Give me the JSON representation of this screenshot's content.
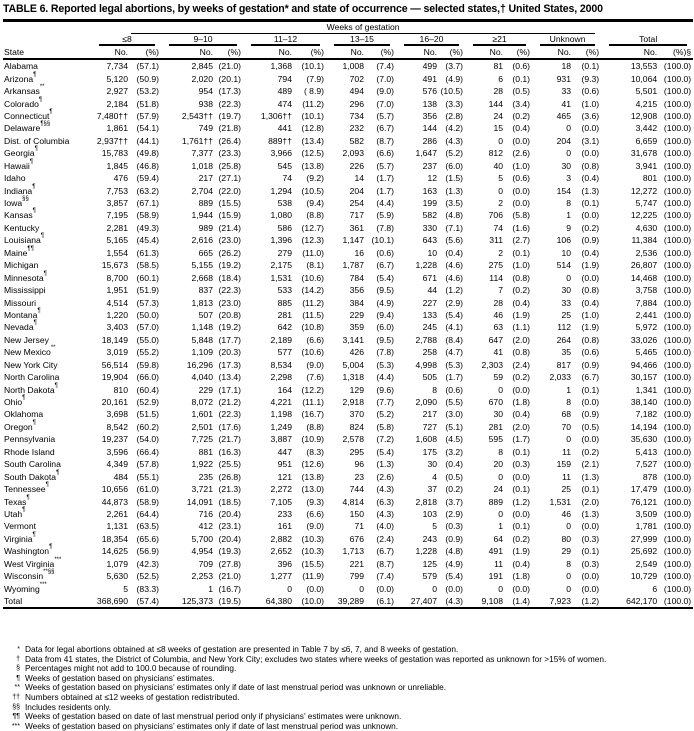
{
  "title": "TABLE 6. Reported legal abortions, by weeks of gestation* and state of occurrence — selected states,† United States, 2000",
  "header": {
    "weeks_of_gestation": "Weeks of gestation",
    "state": "State",
    "groups": [
      "≤8",
      "9–10",
      "11–12",
      "13–15",
      "16–20",
      "≥21",
      "Unknown",
      "Total"
    ],
    "no": "No.",
    "pct": "(%)",
    "pct_total": "(%)§"
  },
  "rows": [
    {
      "state": "Alabama",
      "mark": "",
      "cells": [
        "7,734",
        "(57.1)",
        "2,845",
        "(21.0)",
        "1,368",
        "(10.1)",
        "1,008",
        "(7.4)",
        "499",
        "(3.7)",
        "81",
        "(0.6)",
        "18",
        "(0.1)",
        "13,553",
        "(100.0)"
      ]
    },
    {
      "state": "Arizona",
      "mark": "¶",
      "cells": [
        "5,120",
        "(50.9)",
        "2,020",
        "(20.1)",
        "794",
        "(7.9)",
        "702",
        "(7.0)",
        "491",
        "(4.9)",
        "6",
        "(0.1)",
        "931",
        "(9.3)",
        "10,064",
        "(100.0)"
      ]
    },
    {
      "state": "Arkansas",
      "mark": "**",
      "cells": [
        "2,927",
        "(53.2)",
        "954",
        "(17.3)",
        "489",
        "( 8.9)",
        "494",
        "(9.0)",
        "576",
        "(10.5)",
        "28",
        "(0.5)",
        "33",
        "(0.6)",
        "5,501",
        "(100.0)"
      ]
    },
    {
      "state": "Colorado",
      "mark": "¶",
      "cells": [
        "2,184",
        "(51.8)",
        "938",
        "(22.3)",
        "474",
        "(11.2)",
        "296",
        "(7.0)",
        "138",
        "(3.3)",
        "144",
        "(3.4)",
        "41",
        "(1.0)",
        "4,215",
        "(100.0)"
      ]
    },
    {
      "state": "Connecticut",
      "mark": "¶",
      "cells": [
        "7,480††",
        "(57.9)",
        "2,543††",
        "(19.7)",
        "1,306††",
        "(10.1)",
        "734",
        "(5.7)",
        "356",
        "(2.8)",
        "24",
        "(0.2)",
        "465",
        "(3.6)",
        "12,908",
        "(100.0)"
      ]
    },
    {
      "state": "Delaware",
      "mark": "¶§§",
      "cells": [
        "1,861",
        "(54.1)",
        "749",
        "(21.8)",
        "441",
        "(12.8)",
        "232",
        "(6.7)",
        "144",
        "(4.2)",
        "15",
        "(0.4)",
        "0",
        "(0.0)",
        "3,442",
        "(100.0)"
      ]
    },
    {
      "state": "Dist. of Columbia",
      "mark": "",
      "cells": [
        "2,937††",
        "(44.1)",
        "1,761††",
        "(26.4)",
        "889††",
        "(13.4)",
        "582",
        "(8.7)",
        "286",
        "(4.3)",
        "0",
        "(0.0)",
        "204",
        "(3.1)",
        "6,659",
        "(100.0)"
      ]
    },
    {
      "state": "Georgia",
      "mark": "¶",
      "cells": [
        "15,783",
        "(49.8)",
        "7,377",
        "(23.3)",
        "3,966",
        "(12.5)",
        "2,093",
        "(6.6)",
        "1,647",
        "(5.2)",
        "812",
        "(2.6)",
        "0",
        "(0.0)",
        "31,678",
        "(100.0)"
      ]
    },
    {
      "state": "Hawaii",
      "mark": "¶",
      "cells": [
        "1,845",
        "(46.8)",
        "1,018",
        "(25.8)",
        "545",
        "(13.8)",
        "226",
        "(5.7)",
        "237",
        "(6.0)",
        "40",
        "(1.0)",
        "30",
        "(0.8)",
        "3,941",
        "(100.0)"
      ]
    },
    {
      "state": "Idaho",
      "mark": "",
      "cells": [
        "476",
        "(59.4)",
        "217",
        "(27.1)",
        "74",
        "(9.2)",
        "14",
        "(1.7)",
        "12",
        "(1.5)",
        "5",
        "(0.6)",
        "3",
        "(0.4)",
        "801",
        "(100.0)"
      ]
    },
    {
      "state": "Indiana",
      "mark": "¶",
      "cells": [
        "7,753",
        "(63.2)",
        "2,704",
        "(22.0)",
        "1,294",
        "(10.5)",
        "204",
        "(1.7)",
        "163",
        "(1.3)",
        "0",
        "(0.0)",
        "154",
        "(1.3)",
        "12,272",
        "(100.0)"
      ]
    },
    {
      "state": "Iowa",
      "mark": "§§",
      "cells": [
        "3,857",
        "(67.1)",
        "889",
        "(15.5)",
        "538",
        "(9.4)",
        "254",
        "(4.4)",
        "199",
        "(3.5)",
        "2",
        "(0.0)",
        "8",
        "(0.1)",
        "5,747",
        "(100.0)"
      ]
    },
    {
      "state": "Kansas",
      "mark": "¶",
      "cells": [
        "7,195",
        "(58.9)",
        "1,944",
        "(15.9)",
        "1,080",
        "(8.8)",
        "717",
        "(5.9)",
        "582",
        "(4.8)",
        "706",
        "(5.8)",
        "1",
        "(0.0)",
        "12,225",
        "(100.0)"
      ]
    },
    {
      "state": "Kentucky",
      "mark": "",
      "cells": [
        "2,281",
        "(49.3)",
        "989",
        "(21.4)",
        "586",
        "(12.7)",
        "361",
        "(7.8)",
        "330",
        "(7.1)",
        "74",
        "(1.6)",
        "9",
        "(0.2)",
        "4,630",
        "(100.0)"
      ]
    },
    {
      "state": "Louisiana",
      "mark": "¶",
      "cells": [
        "5,165",
        "(45.4)",
        "2,616",
        "(23.0)",
        "1,396",
        "(12.3)",
        "1,147",
        "(10.1)",
        "643",
        "(5.6)",
        "311",
        "(2.7)",
        "106",
        "(0.9)",
        "11,384",
        "(100.0)"
      ]
    },
    {
      "state": "Maine",
      "mark": "¶¶",
      "cells": [
        "1,554",
        "(61.3)",
        "665",
        "(26.2)",
        "279",
        "(11.0)",
        "16",
        "(0.6)",
        "10",
        "(0.4)",
        "2",
        "(0.1)",
        "10",
        "(0.4)",
        "2,536",
        "(100.0)"
      ]
    },
    {
      "state": "Michigan",
      "mark": "",
      "cells": [
        "15,673",
        "(58.5)",
        "5,155",
        "(19.2)",
        "2,175",
        "(8.1)",
        "1,787",
        "(6.7)",
        "1,228",
        "(4.6)",
        "275",
        "(1.0)",
        "514",
        "(1.9)",
        "26,807",
        "(100.0)"
      ]
    },
    {
      "state": "Minnesota",
      "mark": "¶",
      "cells": [
        "8,700",
        "(60.1)",
        "2,668",
        "(18.4)",
        "1,531",
        "(10.6)",
        "784",
        "(5.4)",
        "671",
        "(4.6)",
        "114",
        "(0.8)",
        "0",
        "(0.0)",
        "14,468",
        "(100.0)"
      ]
    },
    {
      "state": "Mississippi",
      "mark": "",
      "cells": [
        "1,951",
        "(51.9)",
        "837",
        "(22.3)",
        "533",
        "(14.2)",
        "356",
        "(9.5)",
        "44",
        "(1.2)",
        "7",
        "(0.2)",
        "30",
        "(0.8)",
        "3,758",
        "(100.0)"
      ]
    },
    {
      "state": "Missouri",
      "mark": "",
      "cells": [
        "4,514",
        "(57.3)",
        "1,813",
        "(23.0)",
        "885",
        "(11.2)",
        "384",
        "(4.9)",
        "227",
        "(2.9)",
        "28",
        "(0.4)",
        "33",
        "(0.4)",
        "7,884",
        "(100.0)"
      ]
    },
    {
      "state": "Montana",
      "mark": "¶",
      "cells": [
        "1,220",
        "(50.0)",
        "507",
        "(20.8)",
        "281",
        "(11.5)",
        "229",
        "(9.4)",
        "133",
        "(5.4)",
        "46",
        "(1.9)",
        "25",
        "(1.0)",
        "2,441",
        "(100.0)"
      ]
    },
    {
      "state": "Nevada",
      "mark": "¶",
      "cells": [
        "3,403",
        "(57.0)",
        "1,148",
        "(19.2)",
        "642",
        "(10.8)",
        "359",
        "(6.0)",
        "245",
        "(4.1)",
        "63",
        "(1.1)",
        "112",
        "(1.9)",
        "5,972",
        "(100.0)"
      ]
    },
    {
      "state": "New Jersey",
      "mark": "",
      "cells": [
        "18,149",
        "(55.0)",
        "5,848",
        "(17.7)",
        "2,189",
        "(6.6)",
        "3,141",
        "(9.5)",
        "2,788",
        "(8.4)",
        "647",
        "(2.0)",
        "264",
        "(0.8)",
        "33,026",
        "(100.0)"
      ]
    },
    {
      "state": "New Mexico",
      "mark": "**",
      "cells": [
        "3,019",
        "(55.2)",
        "1,109",
        "(20.3)",
        "577",
        "(10.6)",
        "426",
        "(7.8)",
        "258",
        "(4.7)",
        "41",
        "(0.8)",
        "35",
        "(0.6)",
        "5,465",
        "(100.0)"
      ]
    },
    {
      "state": "New York City",
      "mark": "",
      "cells": [
        "56,514",
        "(59.8)",
        "16,296",
        "(17.3)",
        "8,534",
        "(9.0)",
        "5,004",
        "(5.3)",
        "4,998",
        "(5.3)",
        "2,303",
        "(2.4)",
        "817",
        "(0.9)",
        "94,466",
        "(100.0)"
      ]
    },
    {
      "state": "North Carolina",
      "mark": "",
      "cells": [
        "19,904",
        "(66.0)",
        "4,040",
        "(13.4)",
        "2,298",
        "(7.6)",
        "1,318",
        "(4.4)",
        "505",
        "(1.7)",
        "59",
        "(0.2)",
        "2,033",
        "(6.7)",
        "30,157",
        "(100.0)"
      ]
    },
    {
      "state": "North Dakota",
      "mark": "¶",
      "cells": [
        "810",
        "(60.4)",
        "229",
        "(17.1)",
        "164",
        "(12.2)",
        "129",
        "(9.6)",
        "8",
        "(0.6)",
        "0",
        "(0.0)",
        "1",
        "(0.1)",
        "1,341",
        "(100.0)"
      ]
    },
    {
      "state": "Ohio",
      "mark": "¶",
      "cells": [
        "20,161",
        "(52.9)",
        "8,072",
        "(21.2)",
        "4,221",
        "(11.1)",
        "2,918",
        "(7.7)",
        "2,090",
        "(5.5)",
        "670",
        "(1.8)",
        "8",
        "(0.0)",
        "38,140",
        "(100.0)"
      ]
    },
    {
      "state": "Oklahoma",
      "mark": "",
      "cells": [
        "3,698",
        "(51.5)",
        "1,601",
        "(22.3)",
        "1,198",
        "(16.7)",
        "370",
        "(5.2)",
        "217",
        "(3.0)",
        "30",
        "(0.4)",
        "68",
        "(0.9)",
        "7,182",
        "(100.0)"
      ]
    },
    {
      "state": "Oregon",
      "mark": "¶",
      "cells": [
        "8,542",
        "(60.2)",
        "2,501",
        "(17.6)",
        "1,249",
        "(8.8)",
        "824",
        "(5.8)",
        "727",
        "(5.1)",
        "281",
        "(2.0)",
        "70",
        "(0.5)",
        "14,194",
        "(100.0)"
      ]
    },
    {
      "state": "Pennsylvania",
      "mark": "",
      "cells": [
        "19,237",
        "(54.0)",
        "7,725",
        "(21.7)",
        "3,887",
        "(10.9)",
        "2,578",
        "(7.2)",
        "1,608",
        "(4.5)",
        "595",
        "(1.7)",
        "0",
        "(0.0)",
        "35,630",
        "(100.0)"
      ]
    },
    {
      "state": "Rhode Island",
      "mark": "",
      "cells": [
        "3,596",
        "(66.4)",
        "881",
        "(16.3)",
        "447",
        "(8.3)",
        "295",
        "(5.4)",
        "175",
        "(3.2)",
        "8",
        "(0.1)",
        "11",
        "(0.2)",
        "5,413",
        "(100.0)"
      ]
    },
    {
      "state": "South Carolina",
      "mark": "",
      "cells": [
        "4,349",
        "(57.8)",
        "1,922",
        "(25.5)",
        "951",
        "(12.6)",
        "96",
        "(1.3)",
        "30",
        "(0.4)",
        "20",
        "(0.3)",
        "159",
        "(2.1)",
        "7,527",
        "(100.0)"
      ]
    },
    {
      "state": "South Dakota",
      "mark": "¶",
      "cells": [
        "484",
        "(55.1)",
        "235",
        "(26.8)",
        "121",
        "(13.8)",
        "23",
        "(2.6)",
        "4",
        "(0.5)",
        "0",
        "(0.0)",
        "11",
        "(1.3)",
        "878",
        "(100.0)"
      ]
    },
    {
      "state": "Tennessee",
      "mark": "¶",
      "cells": [
        "10,656",
        "(61.0)",
        "3,721",
        "(21.3)",
        "2,272",
        "(13.0)",
        "744",
        "(4.3)",
        "37",
        "(0.2)",
        "24",
        "(0.1)",
        "25",
        "(0.1)",
        "17,479",
        "(100.0)"
      ]
    },
    {
      "state": "Texas",
      "mark": "¶",
      "cells": [
        "44,873",
        "(58.9)",
        "14,091",
        "(18.5)",
        "7,105",
        "(9.3)",
        "4,814",
        "(6.3)",
        "2,818",
        "(3.7)",
        "889",
        "(1.2)",
        "1,531",
        "(2.0)",
        "76,121",
        "(100.0)"
      ]
    },
    {
      "state": "Utah",
      "mark": "¶",
      "cells": [
        "2,261",
        "(64.4)",
        "716",
        "(20.4)",
        "233",
        "(6.6)",
        "150",
        "(4.3)",
        "103",
        "(2.9)",
        "0",
        "(0.0)",
        "46",
        "(1.3)",
        "3,509",
        "(100.0)"
      ]
    },
    {
      "state": "Vermont",
      "mark": "",
      "cells": [
        "1,131",
        "(63.5)",
        "412",
        "(23.1)",
        "161",
        "(9.0)",
        "71",
        "(4.0)",
        "5",
        "(0.3)",
        "1",
        "(0.1)",
        "0",
        "(0.0)",
        "1,781",
        "(100.0)"
      ]
    },
    {
      "state": "Virginia",
      "mark": "¶",
      "cells": [
        "18,354",
        "(65.6)",
        "5,700",
        "(20.4)",
        "2,882",
        "(10.3)",
        "676",
        "(2.4)",
        "243",
        "(0.9)",
        "64",
        "(0.2)",
        "80",
        "(0.3)",
        "27,999",
        "(100.0)"
      ]
    },
    {
      "state": "Washington",
      "mark": "¶",
      "cells": [
        "14,625",
        "(56.9)",
        "4,954",
        "(19.3)",
        "2,652",
        "(10.3)",
        "1,713",
        "(6.7)",
        "1,228",
        "(4.8)",
        "491",
        "(1.9)",
        "29",
        "(0.1)",
        "25,692",
        "(100.0)"
      ]
    },
    {
      "state": "West Virginia",
      "mark": "***",
      "cells": [
        "1,079",
        "(42.3)",
        "709",
        "(27.8)",
        "396",
        "(15.5)",
        "221",
        "(8.7)",
        "125",
        "(4.9)",
        "11",
        "(0.4)",
        "8",
        "(0.3)",
        "2,549",
        "(100.0)"
      ]
    },
    {
      "state": "Wisconsin",
      "mark": "**§§",
      "cells": [
        "5,630",
        "(52.5)",
        "2,253",
        "(21.0)",
        "1,277",
        "(11.9)",
        "799",
        "(7.4)",
        "579",
        "(5.4)",
        "191",
        "(1.8)",
        "0",
        "(0.0)",
        "10,729",
        "(100.0)"
      ]
    },
    {
      "state": "Wyoming",
      "mark": "***",
      "cells": [
        "5",
        "(83.3)",
        "1",
        "(16.7)",
        "0",
        "(0.0)",
        "0",
        "(0.0)",
        "0",
        "(0.0)",
        "0",
        "(0.0)",
        "0",
        "(0.0)",
        "6",
        "(100.0)"
      ]
    },
    {
      "state": "Total",
      "mark": "",
      "total": true,
      "cells": [
        "368,690",
        "(57.4)",
        "125,373",
        "(19.5)",
        "64,380",
        "(10.0)",
        "39,289",
        "(6.1)",
        "27,407",
        "(4.3)",
        "9,108",
        "(1.4)",
        "7,923",
        "(1.2)",
        "642,170",
        "(100.0)"
      ]
    }
  ],
  "footnotes": [
    {
      "sym": "*",
      "text": "Data for legal abortions obtained at ≤8 weeks of gestation are presented in Table 7 by ≤6, 7, and 8 weeks of gestation."
    },
    {
      "sym": "†",
      "text": "Data from 41 states, the District of Columbia, and New York City; excludes two states where weeks of gestation was reported as unknown for >15% of women."
    },
    {
      "sym": "§",
      "text": "Percentages might not add to 100.0 because of rounding."
    },
    {
      "sym": "¶",
      "text": "Weeks of gestation based on physicians’ estimates."
    },
    {
      "sym": "**",
      "text": "Weeks of gestation based on physicians’ estimates only if date of last menstrual period was unknown or unreliable."
    },
    {
      "sym": "††",
      "text": "Numbers obtained at ≤12 weeks of gestation redistributed."
    },
    {
      "sym": "§§",
      "text": "Includes residents only."
    },
    {
      "sym": "¶¶",
      "text": "Weeks of gestation based on date of last menstrual period only if physicians’ estimates were unknown."
    },
    {
      "sym": "***",
      "text": "Weeks of gestation based on physicians’ estimates only if date of last menstrual period was unknown."
    }
  ]
}
